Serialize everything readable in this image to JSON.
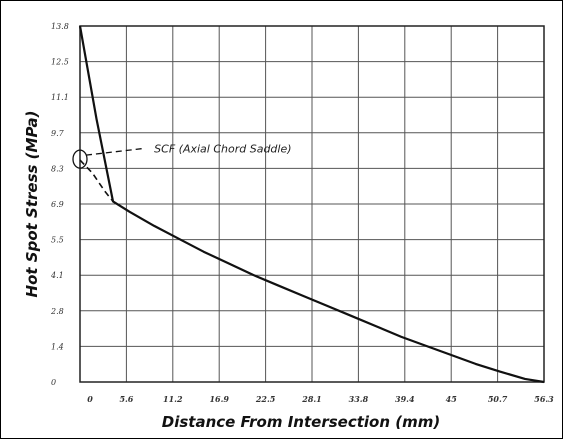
{
  "chart_data": {
    "type": "line",
    "xlabel": "Distance From Intersection (mm)",
    "ylabel": "Hot Spot Stress (MPa)",
    "x_tick_labels": [
      "0",
      "5.6",
      "11.2",
      "16.9",
      "22.5",
      "28.1",
      "33.8",
      "39.4",
      "45",
      "50.7",
      "56.3"
    ],
    "y_tick_labels": [
      "0",
      "1.4",
      "2.8",
      "4.1",
      "5.5",
      "6.9",
      "8.3",
      "9.7",
      "11.1",
      "12.5",
      "13.8"
    ],
    "xlim": [
      0,
      56.3
    ],
    "ylim": [
      0,
      13.8
    ],
    "grid": true,
    "series": [
      {
        "style": "solid",
        "x": [
          0,
          2.0,
          4.0,
          6,
          9,
          12,
          15,
          18,
          21,
          24,
          27,
          30,
          33,
          36,
          39,
          42,
          45,
          48,
          51,
          54,
          56.3
        ],
        "y": [
          13.8,
          10.2,
          7.0,
          6.6,
          6.05,
          5.55,
          5.05,
          4.6,
          4.15,
          3.75,
          3.35,
          2.95,
          2.55,
          2.15,
          1.75,
          1.4,
          1.05,
          0.7,
          0.4,
          0.12,
          0
        ]
      },
      {
        "style": "dashed",
        "x": [
          0,
          1.5,
          3.0,
          4.0
        ],
        "y": [
          8.6,
          8.1,
          7.4,
          7.0
        ]
      }
    ],
    "annotations": [
      {
        "text": "SCF (Axial Chord Saddle)",
        "x": 9.0,
        "y": 8.9,
        "target_x": 0,
        "target_y": 8.6
      }
    ]
  }
}
